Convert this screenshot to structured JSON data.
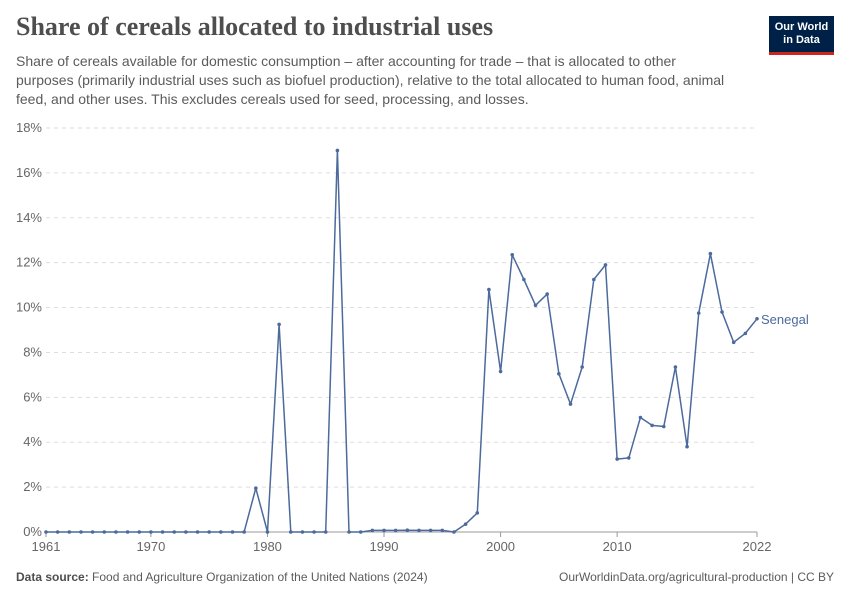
{
  "header": {
    "title": "Share of cereals allocated to industrial uses",
    "subtitle": "Share of cereals available for domestic consumption – after accounting for trade – that is allocated to other purposes (primarily industrial uses such as biofuel production), relative to the total allocated to human food, animal feed, and other uses. This excludes cereals used for seed, processing, and losses."
  },
  "logo": {
    "line1": "Our World",
    "line2": "in Data",
    "bg": "#002147",
    "accent": "#ce261e"
  },
  "footer": {
    "source_label": "Data source:",
    "source_text": "Food and Agriculture Organization of the United Nations (2024)",
    "url_text": "OurWorldinData.org/agricultural-production | CC BY"
  },
  "chart_data": {
    "type": "line",
    "title": "Share of cereals allocated to industrial uses",
    "xlabel": "",
    "ylabel": "",
    "xlim": [
      1961,
      2022
    ],
    "ylim": [
      0,
      18
    ],
    "y_ticks": [
      0,
      2,
      4,
      6,
      8,
      10,
      12,
      14,
      16,
      18
    ],
    "y_tick_labels": [
      "0%",
      "2%",
      "4%",
      "6%",
      "8%",
      "10%",
      "12%",
      "14%",
      "16%",
      "18%"
    ],
    "x_ticks": [
      1961,
      1970,
      1980,
      1990,
      2000,
      2010,
      2022
    ],
    "x_tick_labels": [
      "1961",
      "1970",
      "1980",
      "1990",
      "2000",
      "2010",
      "2022"
    ],
    "grid": "horizontal-dashed",
    "series": [
      {
        "name": "Senegal",
        "color": "#4c6a9c",
        "x": [
          1961,
          1962,
          1963,
          1964,
          1965,
          1966,
          1967,
          1968,
          1969,
          1970,
          1971,
          1972,
          1973,
          1974,
          1975,
          1976,
          1977,
          1978,
          1979,
          1980,
          1981,
          1982,
          1983,
          1984,
          1985,
          1986,
          1987,
          1988,
          1989,
          1990,
          1991,
          1992,
          1993,
          1994,
          1995,
          1996,
          1997,
          1998,
          1999,
          2000,
          2001,
          2002,
          2003,
          2004,
          2005,
          2006,
          2007,
          2008,
          2009,
          2010,
          2011,
          2012,
          2013,
          2014,
          2015,
          2016,
          2017,
          2018,
          2019,
          2020,
          2021,
          2022
        ],
        "values": [
          0,
          0,
          0,
          0,
          0,
          0,
          0,
          0,
          0,
          0,
          0,
          0,
          0,
          0,
          0,
          0,
          0,
          0,
          1.95,
          0,
          9.25,
          0,
          0,
          0,
          0,
          17.0,
          0,
          0,
          0.07,
          0.07,
          0.07,
          0.08,
          0.07,
          0.07,
          0.07,
          0,
          0.35,
          0.85,
          10.8,
          7.15,
          12.35,
          11.25,
          10.1,
          10.6,
          7.05,
          5.7,
          7.35,
          11.25,
          11.9,
          3.25,
          3.3,
          5.1,
          4.75,
          4.7,
          7.35,
          3.8,
          9.75,
          12.4,
          9.8,
          8.45,
          8.85,
          9.5
        ]
      }
    ]
  }
}
